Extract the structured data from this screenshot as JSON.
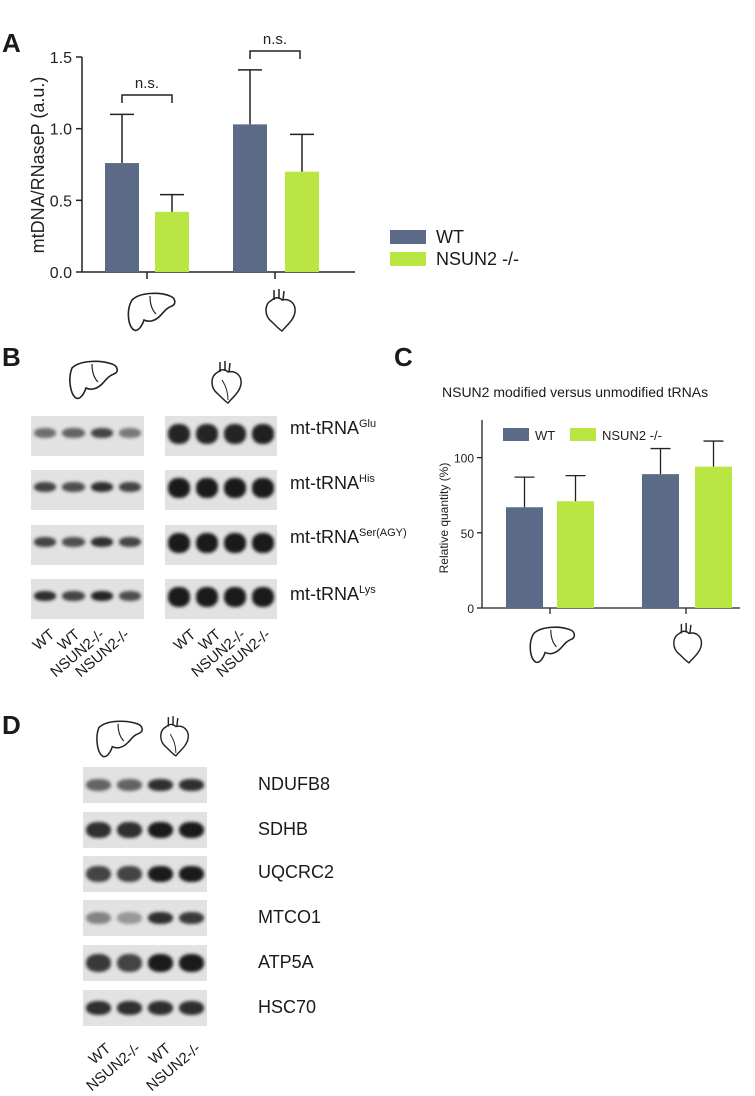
{
  "panels": {
    "a": "A",
    "b": "B",
    "c": "C",
    "d": "D"
  },
  "colors": {
    "wt": "#5b6b87",
    "ko": "#b9e643"
  },
  "icons": {
    "liver": "liver-icon",
    "heart": "heart-icon"
  },
  "chart_a": {
    "type": "bar",
    "categories": [
      "liver",
      "heart"
    ],
    "series": [
      {
        "name": "WT",
        "values": [
          0.76,
          1.03
        ],
        "errors": [
          0.34,
          0.38
        ]
      },
      {
        "name": "NSUN2 -/-",
        "values": [
          0.42,
          0.7
        ],
        "errors": [
          0.12,
          0.26
        ]
      }
    ],
    "ylabel": "mtDNA/RNaseP (a.u.)",
    "ylim": [
      0,
      1.5
    ],
    "yticks": [
      "0.0",
      "0.5",
      "1.0",
      "1.5"
    ],
    "annotations": [
      "n.s.",
      "n.s."
    ],
    "legend": [
      "WT",
      "NSUN2 -/-"
    ]
  },
  "chart_c": {
    "type": "bar",
    "title": "NSUN2 modified versus unmodified tRNAs",
    "categories": [
      "liver",
      "heart"
    ],
    "series": [
      {
        "name": "WT",
        "values": [
          67,
          89
        ],
        "errors": [
          20,
          17
        ]
      },
      {
        "name": "NSUN2 -/-",
        "values": [
          71,
          94
        ],
        "errors": [
          17,
          17
        ]
      }
    ],
    "ylabel": "Relative quantity (%)",
    "ylim": [
      0,
      125
    ],
    "yticks": [
      "0",
      "50",
      "100"
    ],
    "legend": [
      "WT",
      "NSUN2 -/-"
    ]
  },
  "panel_b": {
    "rows": [
      {
        "base": "mt-tRNA",
        "sup": "Glu"
      },
      {
        "base": "mt-tRNA",
        "sup": "His"
      },
      {
        "base": "mt-tRNA",
        "sup": "Ser(AGY)"
      },
      {
        "base": "mt-tRNA",
        "sup": "Lys"
      }
    ],
    "lanes": [
      "WT",
      "WT",
      "NSUN2-/-",
      "NSUN2-/-"
    ]
  },
  "panel_d": {
    "rows": [
      "NDUFB8",
      "SDHB",
      "UQCRC2",
      "MTCO1",
      "ATP5A",
      "HSC70"
    ],
    "lanes": [
      "WT",
      "NSUN2-/-",
      "WT",
      "NSUN2-/-"
    ]
  }
}
